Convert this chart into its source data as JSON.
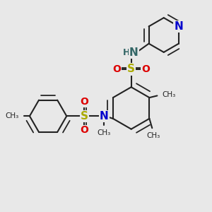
{
  "bg_color": "#e8e8e8",
  "bond_color": "#222222",
  "S_color": "#aaaa00",
  "O_color": "#dd0000",
  "N_color": "#0000cc",
  "NH_color": "#336666",
  "pyN_color": "#0000cc",
  "lw": 1.5,
  "figsize": [
    3.0,
    3.0
  ],
  "dpi": 100,
  "xlim": [
    0,
    10
  ],
  "ylim": [
    0,
    10
  ]
}
